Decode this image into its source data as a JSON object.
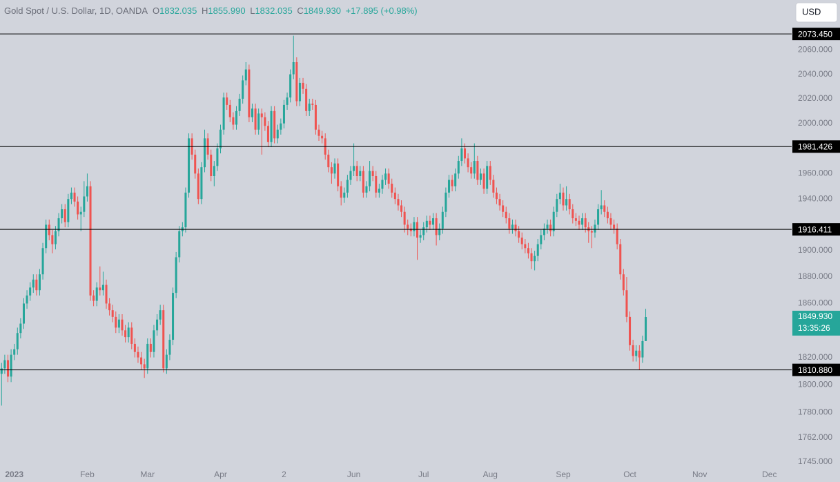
{
  "header": {
    "symbol": "Gold Spot / U.S. Dollar, 1D, OANDA",
    "ohlc": [
      {
        "key": "O",
        "value": "1832.035"
      },
      {
        "key": "H",
        "value": "1855.990"
      },
      {
        "key": "L",
        "value": "1832.035"
      },
      {
        "key": "C",
        "value": "1849.930"
      }
    ],
    "change": "+17.895 (+0.98%)"
  },
  "currency_button": "USD",
  "chart_data": {
    "type": "candlestick",
    "log_scale": true,
    "grid": false,
    "up_color": "#26a69a",
    "down_color": "#ef5350",
    "ylim": [
      1742,
      2102
    ],
    "xlim": [
      -0.5,
      249
    ],
    "yticks": [
      {
        "value": 2060,
        "label": "2060.000"
      },
      {
        "value": 2040,
        "label": "2040.000"
      },
      {
        "value": 2020,
        "label": "2020.000"
      },
      {
        "value": 2000,
        "label": "2000.000"
      },
      {
        "value": 1960,
        "label": "1960.000"
      },
      {
        "value": 1940,
        "label": "1940.000"
      },
      {
        "value": 1900,
        "label": "1900.000"
      },
      {
        "value": 1880,
        "label": "1880.000"
      },
      {
        "value": 1860,
        "label": "1860.000"
      },
      {
        "value": 1820,
        "label": "1820.000"
      },
      {
        "value": 1800,
        "label": "1800.000"
      },
      {
        "value": 1780,
        "label": "1780.000"
      },
      {
        "value": 1762,
        "label": "1762.000"
      },
      {
        "value": 1745,
        "label": "1745.000"
      }
    ],
    "xticks": [
      {
        "value": 4,
        "label": "2023"
      },
      {
        "value": 27,
        "label": "Feb"
      },
      {
        "value": 46,
        "label": "Mar"
      },
      {
        "value": 69,
        "label": "Apr"
      },
      {
        "value": 89,
        "label": "2"
      },
      {
        "value": 111,
        "label": "Jun"
      },
      {
        "value": 133,
        "label": "Jul"
      },
      {
        "value": 154,
        "label": "Aug"
      },
      {
        "value": 177,
        "label": "Sep"
      },
      {
        "value": 198,
        "label": "Oct"
      },
      {
        "value": 220,
        "label": "Nov"
      },
      {
        "value": 242,
        "label": "Dec"
      }
    ],
    "levels": [
      {
        "value": 2073.45,
        "label": "2073.450"
      },
      {
        "value": 1981.426,
        "label": "1981.426"
      },
      {
        "value": 1916.411,
        "label": "1916.411"
      },
      {
        "value": 1810.88,
        "label": "1810.880"
      }
    ],
    "last_price": {
      "value": 1849.93,
      "label": "1849.930",
      "countdown": "13:35:26"
    },
    "open": [
      1808,
      1812,
      1818,
      1806,
      1822,
      1826,
      1838,
      1845,
      1860,
      1866,
      1872,
      1878,
      1870,
      1882,
      1902,
      1920,
      1912,
      1905,
      1915,
      1925,
      1932,
      1922,
      1940,
      1945,
      1938,
      1928,
      1930,
      1942,
      1950,
      1866,
      1862,
      1872,
      1870,
      1874,
      1860,
      1855,
      1850,
      1842,
      1848,
      1840,
      1835,
      1842,
      1830,
      1824,
      1820,
      1815,
      1812,
      1830,
      1824,
      1840,
      1848,
      1855,
      1812,
      1822,
      1833,
      1868,
      1895,
      1915,
      1918,
      1945,
      1988,
      1975,
      1960,
      1940,
      1965,
      1988,
      1975,
      1958,
      1966,
      1980,
      1995,
      2021,
      2015,
      2005,
      1999,
      2010,
      2020,
      2035,
      2044,
      2005,
      2012,
      1995,
      2008,
      2005,
      1998,
      1985,
      2010,
      1988,
      1995,
      2000,
      2015,
      2021,
      2040,
      2050,
      2018,
      2033,
      2028,
      2010,
      2016,
      2015,
      1995,
      1990,
      1988,
      1975,
      1965,
      1960,
      1968,
      1950,
      1941,
      1945,
      1955,
      1962,
      1966,
      1958,
      1962,
      1945,
      1950,
      1962,
      1958,
      1945,
      1948,
      1955,
      1960,
      1952,
      1945,
      1940,
      1935,
      1930,
      1920,
      1917,
      1915,
      1922,
      1910,
      1912,
      1918,
      1923,
      1920,
      1925,
      1912,
      1917,
      1930,
      1945,
      1955,
      1950,
      1960,
      1970,
      1980,
      1972,
      1965,
      1960,
      1970,
      1955,
      1960,
      1948,
      1966,
      1955,
      1945,
      1940,
      1935,
      1930,
      1925,
      1917,
      1920,
      1915,
      1910,
      1905,
      1902,
      1898,
      1892,
      1896,
      1905,
      1912,
      1917,
      1920,
      1915,
      1930,
      1940,
      1945,
      1935,
      1940,
      1932,
      1925,
      1923,
      1920,
      1925,
      1918,
      1915,
      1914,
      1920,
      1932,
      1935,
      1930,
      1925,
      1920,
      1917,
      1905,
      1882,
      1870,
      1850,
      1829,
      1821,
      1825,
      1820,
      1832.035
    ],
    "high": [
      1816,
      1822,
      1822,
      1826,
      1830,
      1842,
      1849,
      1864,
      1870,
      1876,
      1882,
      1882,
      1886,
      1906,
      1924,
      1924,
      1916,
      1919,
      1929,
      1936,
      1936,
      1944,
      1949,
      1949,
      1942,
      1934,
      1954,
      1960,
      1954,
      1870,
      1876,
      1888,
      1884,
      1878,
      1864,
      1859,
      1854,
      1852,
      1852,
      1844,
      1846,
      1846,
      1834,
      1828,
      1824,
      1819,
      1834,
      1834,
      1844,
      1852,
      1859,
      1859,
      1826,
      1837,
      1872,
      1899,
      1919,
      1922,
      1949,
      1992,
      1992,
      1979,
      1964,
      1969,
      1995,
      1992,
      1979,
      1970,
      1984,
      1999,
      2025,
      2025,
      2019,
      2009,
      2014,
      2024,
      2039,
      2050,
      2048,
      2016,
      2016,
      2012,
      2012,
      2009,
      2002,
      2014,
      2014,
      1999,
      2004,
      2019,
      2025,
      2044,
      2072,
      2054,
      2037,
      2037,
      2032,
      2020,
      2020,
      2019,
      1999,
      1994,
      1992,
      1979,
      1969,
      1972,
      1972,
      1954,
      1949,
      1959,
      1966,
      1984,
      1970,
      1966,
      1966,
      1954,
      1970,
      1966,
      1962,
      1952,
      1959,
      1964,
      1964,
      1956,
      1949,
      1944,
      1939,
      1934,
      1924,
      1921,
      1926,
      1926,
      1916,
      1922,
      1927,
      1927,
      1929,
      1929,
      1921,
      1934,
      1949,
      1959,
      1959,
      1964,
      1974,
      1988,
      1984,
      1976,
      1969,
      1984,
      1974,
      1964,
      1964,
      1970,
      1970,
      1959,
      1949,
      1944,
      1939,
      1934,
      1929,
      1924,
      1924,
      1919,
      1914,
      1909,
      1906,
      1902,
      1900,
      1909,
      1916,
      1921,
      1924,
      1924,
      1934,
      1944,
      1952,
      1949,
      1950,
      1944,
      1936,
      1929,
      1927,
      1929,
      1929,
      1922,
      1919,
      1924,
      1936,
      1947,
      1939,
      1934,
      1929,
      1924,
      1921,
      1909,
      1886,
      1880,
      1854,
      1833,
      1829,
      1829,
      1836,
      1855.99
    ],
    "low": [
      1785,
      1808,
      1802,
      1802,
      1818,
      1822,
      1834,
      1841,
      1856,
      1862,
      1868,
      1866,
      1866,
      1878,
      1898,
      1908,
      1898,
      1901,
      1911,
      1921,
      1918,
      1918,
      1936,
      1934,
      1924,
      1915,
      1926,
      1938,
      1862,
      1858,
      1858,
      1866,
      1866,
      1856,
      1851,
      1846,
      1838,
      1838,
      1836,
      1831,
      1831,
      1826,
      1820,
      1816,
      1811,
      1805,
      1808,
      1820,
      1820,
      1836,
      1844,
      1809,
      1808,
      1818,
      1829,
      1864,
      1891,
      1911,
      1914,
      1941,
      1971,
      1956,
      1936,
      1936,
      1961,
      1971,
      1954,
      1950,
      1962,
      1976,
      1991,
      2011,
      2001,
      1995,
      1995,
      2006,
      2016,
      2031,
      2001,
      2001,
      1991,
      1991,
      1975,
      1994,
      1981,
      1981,
      1984,
      1984,
      1991,
      1996,
      2011,
      2017,
      2036,
      2014,
      2014,
      2024,
      2006,
      2006,
      2011,
      1991,
      1986,
      1984,
      1971,
      1961,
      1952,
      1956,
      1946,
      1935,
      1937,
      1941,
      1951,
      1958,
      1954,
      1954,
      1941,
      1941,
      1946,
      1954,
      1941,
      1941,
      1944,
      1951,
      1948,
      1941,
      1936,
      1931,
      1926,
      1914,
      1912,
      1911,
      1911,
      1893,
      1906,
      1908,
      1914,
      1916,
      1916,
      1904,
      1908,
      1913,
      1926,
      1941,
      1946,
      1946,
      1956,
      1966,
      1968,
      1961,
      1956,
      1956,
      1951,
      1951,
      1944,
      1944,
      1951,
      1941,
      1936,
      1931,
      1926,
      1921,
      1913,
      1913,
      1911,
      1906,
      1901,
      1898,
      1894,
      1886,
      1885,
      1892,
      1901,
      1908,
      1913,
      1911,
      1911,
      1926,
      1936,
      1931,
      1931,
      1928,
      1921,
      1919,
      1916,
      1916,
      1914,
      1906,
      1902,
      1910,
      1916,
      1928,
      1926,
      1921,
      1916,
      1913,
      1901,
      1878,
      1866,
      1846,
      1825,
      1817,
      1817,
      1810.88,
      1816,
      1832.035
    ],
    "close": [
      1812,
      1818,
      1806,
      1822,
      1826,
      1838,
      1845,
      1860,
      1866,
      1872,
      1878,
      1870,
      1882,
      1902,
      1920,
      1912,
      1905,
      1915,
      1925,
      1932,
      1922,
      1940,
      1945,
      1938,
      1928,
      1930,
      1942,
      1950,
      1866,
      1862,
      1872,
      1870,
      1874,
      1860,
      1855,
      1850,
      1842,
      1848,
      1840,
      1835,
      1842,
      1830,
      1824,
      1820,
      1815,
      1812,
      1830,
      1824,
      1840,
      1848,
      1855,
      1812,
      1822,
      1833,
      1868,
      1895,
      1915,
      1918,
      1945,
      1988,
      1975,
      1960,
      1940,
      1965,
      1988,
      1975,
      1958,
      1966,
      1980,
      1995,
      2021,
      2015,
      2005,
      1999,
      2010,
      2020,
      2035,
      2044,
      2005,
      2012,
      1995,
      2008,
      2005,
      1998,
      1985,
      2010,
      1988,
      1995,
      2000,
      2015,
      2021,
      2040,
      2050,
      2018,
      2033,
      2028,
      2010,
      2016,
      2015,
      1995,
      1990,
      1988,
      1975,
      1965,
      1960,
      1968,
      1950,
      1941,
      1945,
      1955,
      1962,
      1966,
      1958,
      1962,
      1945,
      1950,
      1962,
      1958,
      1945,
      1948,
      1955,
      1960,
      1952,
      1945,
      1940,
      1935,
      1930,
      1920,
      1917,
      1915,
      1922,
      1910,
      1912,
      1918,
      1923,
      1920,
      1925,
      1912,
      1917,
      1930,
      1945,
      1955,
      1950,
      1960,
      1970,
      1980,
      1972,
      1965,
      1960,
      1970,
      1955,
      1960,
      1948,
      1966,
      1955,
      1945,
      1940,
      1935,
      1930,
      1925,
      1917,
      1920,
      1915,
      1910,
      1905,
      1902,
      1898,
      1892,
      1896,
      1905,
      1912,
      1917,
      1920,
      1915,
      1930,
      1940,
      1945,
      1935,
      1940,
      1932,
      1925,
      1923,
      1920,
      1925,
      1918,
      1915,
      1914,
      1920,
      1932,
      1935,
      1930,
      1925,
      1920,
      1917,
      1905,
      1882,
      1870,
      1850,
      1829,
      1821,
      1825,
      1820,
      1832.035,
      1849.93
    ]
  }
}
